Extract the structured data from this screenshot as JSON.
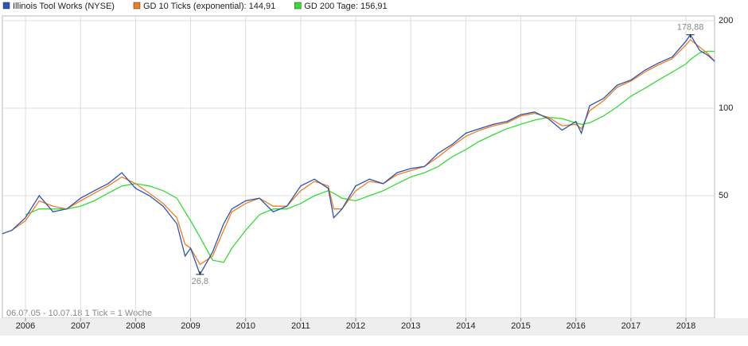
{
  "chart_data": {
    "type": "line",
    "legend": "top-left",
    "log_y": true,
    "grid": true,
    "x": [
      2005.58,
      2005.75,
      2006,
      2006.25,
      2006.5,
      2006.75,
      2007,
      2007.25,
      2007.5,
      2007.75,
      2008,
      2008.25,
      2008.5,
      2008.75,
      2008.9,
      2009,
      2009.17,
      2009.4,
      2009.6,
      2009.75,
      2010,
      2010.25,
      2010.5,
      2010.75,
      2011,
      2011.25,
      2011.5,
      2011.6,
      2011.75,
      2012,
      2012.25,
      2012.5,
      2012.75,
      2013,
      2013.25,
      2013.5,
      2013.75,
      2014,
      2014.25,
      2014.5,
      2014.75,
      2015,
      2015.25,
      2015.5,
      2015.75,
      2016,
      2016.1,
      2016.25,
      2016.5,
      2016.75,
      2017,
      2017.25,
      2017.5,
      2017.75,
      2018,
      2018.08,
      2018.25,
      2018.4,
      2018.52
    ],
    "series": [
      {
        "name": "Illinois Tool Works (NYSE)",
        "color": "#2a55b5",
        "values": [
          37,
          38,
          42,
          50,
          44,
          45,
          49,
          52,
          55,
          60,
          53,
          50,
          46,
          40,
          31,
          33,
          26.8,
          32,
          40,
          45,
          48,
          49,
          44,
          46,
          54,
          57,
          53,
          42,
          45,
          54,
          57,
          55,
          60,
          62,
          63,
          70,
          75,
          82,
          85,
          88,
          90,
          95,
          97,
          92,
          84,
          90,
          82,
          102,
          108,
          120,
          125,
          135,
          143,
          150,
          170,
          178.88,
          158,
          152,
          145
        ]
      },
      {
        "name": "GD 10 Ticks (exponential): 144,91",
        "color": "#f07d1e",
        "values": [
          37,
          38,
          41,
          48,
          46,
          45,
          48,
          51,
          54,
          58,
          55,
          51,
          47,
          42,
          34,
          33,
          29,
          31,
          38,
          44,
          47,
          49,
          46,
          46,
          52,
          56,
          54,
          45,
          45,
          52,
          56,
          55,
          59,
          61,
          63,
          68,
          74,
          80,
          84,
          87,
          89,
          94,
          96,
          93,
          87,
          88,
          85,
          98,
          106,
          118,
          124,
          133,
          141,
          148,
          165,
          172,
          162,
          154,
          144.91
        ]
      },
      {
        "name": "GD 200 Tage: 156,91",
        "color": "#33dd33",
        "values": [
          null,
          null,
          43,
          45,
          45,
          45,
          46,
          48,
          51,
          54,
          55,
          54,
          52,
          49,
          44,
          41,
          36,
          30,
          29.5,
          33,
          38,
          43,
          45,
          45,
          47,
          50,
          52,
          51,
          49,
          48,
          50,
          52,
          55,
          58,
          60,
          63,
          68,
          72,
          77,
          81,
          85,
          88,
          91,
          93,
          92,
          89,
          88,
          89,
          94,
          101,
          110,
          117,
          125,
          133,
          142,
          147,
          155,
          157,
          156.91
        ]
      }
    ],
    "annotations": [
      {
        "label": "178,88",
        "x": 2018.08,
        "y": 178.88,
        "position": "above"
      },
      {
        "label": "26,8",
        "x": 2009.17,
        "y": 26.8,
        "position": "below"
      }
    ],
    "footnote": "06.07.05 - 10.07.18   1 Tick = 1 Woche",
    "xlim": [
      2005.58,
      2018.52
    ],
    "xticks": [
      2006,
      2007,
      2008,
      2009,
      2010,
      2011,
      2012,
      2013,
      2014,
      2015,
      2016,
      2017,
      2018
    ],
    "ylim": [
      18.95,
      207.7
    ],
    "yticks": [
      50,
      100,
      200
    ]
  }
}
